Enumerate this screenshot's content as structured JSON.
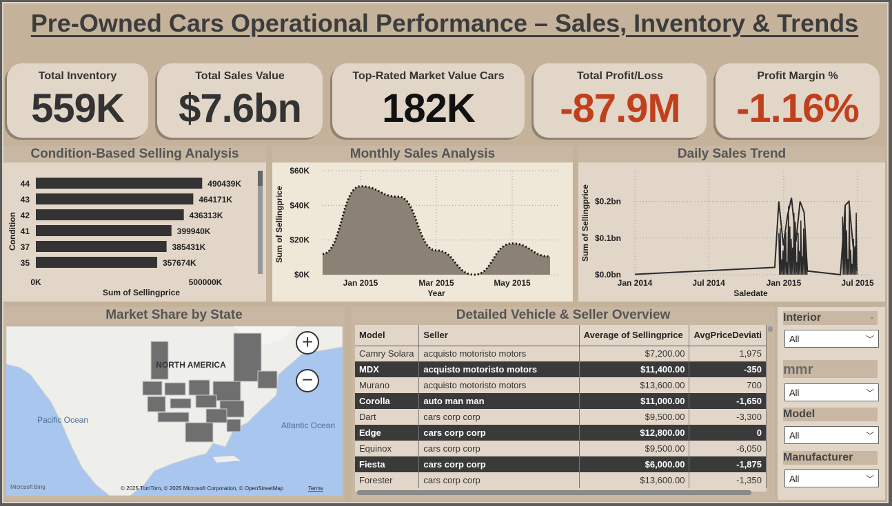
{
  "title": "Pre-Owned Cars Operational Performance – Sales, Inventory & Trends",
  "kpis": [
    {
      "label": "Total Inventory",
      "value": "559K",
      "color": "#333333"
    },
    {
      "label": "Total Sales Value",
      "value": "$7.6bn",
      "color": "#333333"
    },
    {
      "label": "Top-Rated Market Value Cars",
      "value": "182K",
      "color": "#111111"
    },
    {
      "label": "Total Profit/Loss",
      "value": "-87.9M",
      "color": "#c0401e"
    },
    {
      "label": "Profit Margin %",
      "value": "-1.16%",
      "color": "#c0401e"
    }
  ],
  "condition_panel": {
    "title": "Condition-Based Selling Analysis",
    "ylabel": "Condition",
    "xlabel": "Sum of Sellingprice",
    "xticks": [
      "0K",
      "500000K"
    ]
  },
  "monthly_panel": {
    "title": "Monthly Sales Analysis",
    "ylabel": "Sum of Sellingprice",
    "xlabel": "Year",
    "yticks": [
      "$60K",
      "$40K",
      "$20K",
      "$0K"
    ],
    "xticks": [
      "Jan 2015",
      "Mar 2015",
      "May 2015"
    ]
  },
  "daily_panel": {
    "title": "Daily Sales Trend",
    "ylabel": "Sum of Sellingprice",
    "xlabel": "Saledate",
    "yticks": [
      "$0.2bn",
      "$0.1bn",
      "$0.0bn"
    ],
    "xticks": [
      "Jan 2014",
      "Jul 2014",
      "Jan 2015",
      "Jul 2015"
    ]
  },
  "chart_data": [
    {
      "type": "bar",
      "orientation": "horizontal",
      "categories": [
        "44",
        "43",
        "42",
        "41",
        "37",
        "35"
      ],
      "values": [
        490439,
        464171,
        436313,
        399940,
        385431,
        357674
      ],
      "labels": [
        "490439K",
        "464171K",
        "436313K",
        "399940K",
        "385431K",
        "357674K"
      ],
      "xlim": [
        0,
        500000
      ]
    },
    {
      "type": "area",
      "x": [
        "Dec 2014",
        "Jan 2015",
        "Feb 2015",
        "Mar 2015",
        "Apr 2015",
        "May 2015",
        "Jun 2015"
      ],
      "values": [
        12000,
        51000,
        45000,
        14000,
        0,
        18000,
        10500
      ],
      "ylim": [
        0,
        60000
      ],
      "grid": true
    },
    {
      "type": "line",
      "x": [
        "2014-01-01",
        "2014-12-10",
        "2014-12-20",
        "2014-12-31",
        "2015-01-10",
        "2015-01-20",
        "2015-01-31",
        "2015-02-10",
        "2015-02-20",
        "2015-02-28",
        "2015-05-20",
        "2015-06-01",
        "2015-06-10",
        "2015-06-20",
        "2015-06-30"
      ],
      "values": [
        0.001,
        0.02,
        0.2,
        0.08,
        0.16,
        0.21,
        0.09,
        0.2,
        0.17,
        0.01,
        0.0,
        0.19,
        0.2,
        0.08,
        0.01
      ],
      "ylim": [
        0,
        0.25
      ],
      "grid": true
    }
  ],
  "map": {
    "title": "Market Share by State",
    "label_na": "NORTH AMERICA",
    "label_pacific": "Pacific Ocean",
    "label_atlantic": "Atlantic Ocean",
    "credit": "© 2025 TomTom, © 2025 Microsoft Corporation, © OpenStreetMap",
    "terms": "Terms",
    "logo": "Microsoft Bing",
    "zoom_in": "+",
    "zoom_out": "−"
  },
  "table": {
    "title": "Detailed Vehicle & Seller Overview",
    "headers": [
      "Model",
      "Seller",
      "Average of Sellingprice",
      "AvgPriceDeviati"
    ],
    "rows": [
      [
        "Camry Solara",
        "acquisto motoristo motors",
        "$7,200.00",
        "1,975"
      ],
      [
        "MDX",
        "acquisto motoristo motors",
        "$11,400.00",
        "-350"
      ],
      [
        "Murano",
        "acquisto motoristo motors",
        "$13,600.00",
        "700"
      ],
      [
        "Corolla",
        "auto man man",
        "$11,000.00",
        "-1,650"
      ],
      [
        "Dart",
        "cars corp corp",
        "$9,500.00",
        "-3,300"
      ],
      [
        "Edge",
        "cars corp corp",
        "$12,800.00",
        "0"
      ],
      [
        "Equinox",
        "cars corp corp",
        "$9,500.00",
        "-6,050"
      ],
      [
        "Fiesta",
        "cars corp corp",
        "$6,000.00",
        "-1,875"
      ],
      [
        "Forester",
        "cars corp corp",
        "$13,600.00",
        "-1,350"
      ]
    ]
  },
  "slicers": [
    {
      "label": "Interior",
      "value": "All"
    },
    {
      "label": "mmr",
      "value": "All"
    },
    {
      "label": "Model",
      "value": "All"
    },
    {
      "label": "Manufacturer",
      "value": "All"
    }
  ]
}
